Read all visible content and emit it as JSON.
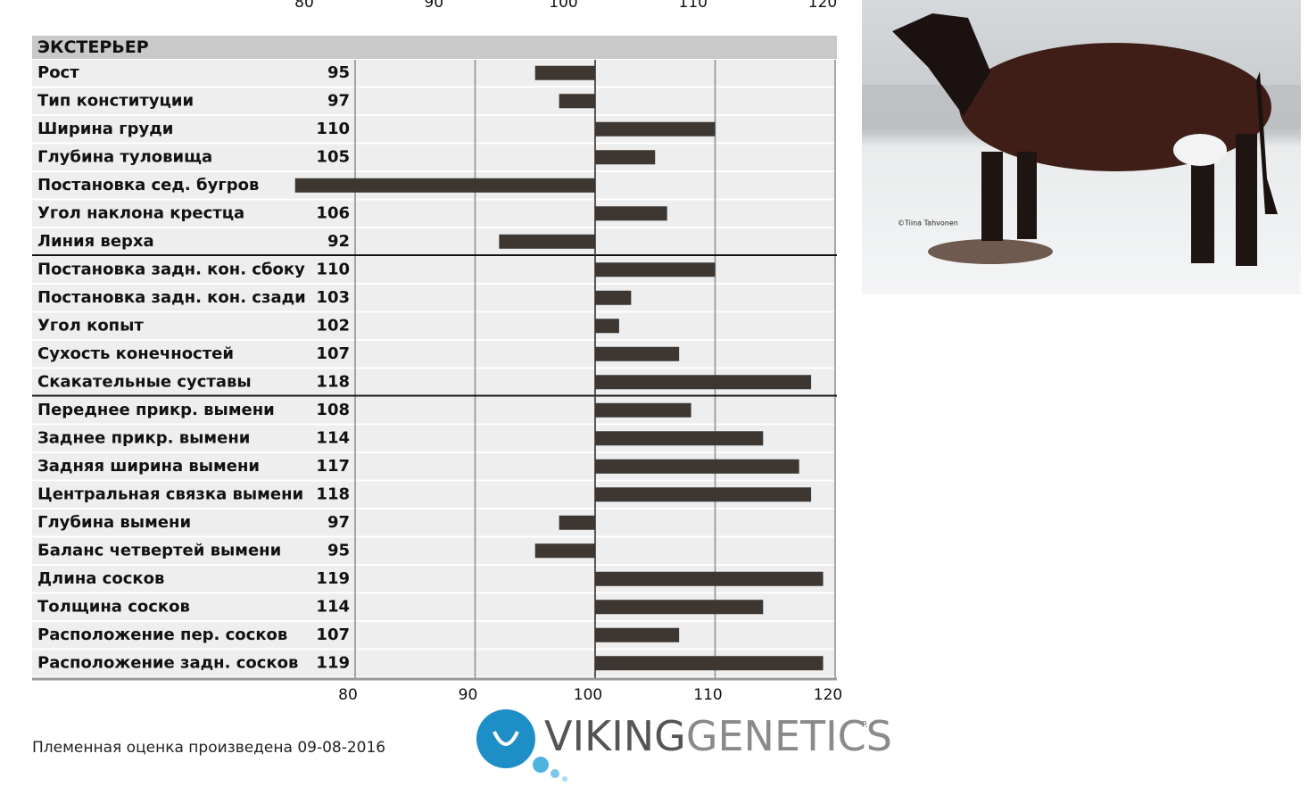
{
  "chart_data": {
    "type": "bar",
    "orientation": "horizontal",
    "section_title": "ЭКСТЕРЬЕР",
    "groups": [
      {
        "categories": [
          "Рост",
          "Тип конституции",
          "Ширина груди",
          "Глубина туловища",
          "Постановка сед. бугров",
          "Угол наклона крестца",
          "Линия верха"
        ],
        "values": [
          95,
          97,
          110,
          105,
          75,
          106,
          92
        ]
      },
      {
        "categories": [
          "Постановка задн. кон. сбоку",
          "Постановка задн. кон. сзади",
          "Угол копыт",
          "Сухость конечностей",
          "Скакательные суставы"
        ],
        "values": [
          110,
          103,
          102,
          107,
          118
        ]
      },
      {
        "categories": [
          "Переднее прикр. вымени",
          "Заднее прикр. вымени",
          "Задняя ширина вымени",
          "Центральная связка вымени",
          "Глубина вымени",
          "Баланс четвертей вымени",
          "Длина сосков",
          "Толщина сосков",
          "Расположение пер. сосков",
          "Расположение задн. сосков"
        ],
        "values": [
          108,
          114,
          117,
          118,
          97,
          95,
          119,
          114,
          107,
          119
        ]
      }
    ],
    "xlim": [
      80,
      120
    ],
    "xticks": [
      80,
      90,
      100,
      110,
      120
    ],
    "bar_base": 100,
    "grid": true,
    "color": "#3d3631"
  },
  "photo_credit": "©Tiina Tahvonen",
  "footer": "Племенная оценка произведена 09-08-2016",
  "logo": {
    "part1": "VIKING",
    "part2": "GENETICS",
    "mark": "R"
  }
}
